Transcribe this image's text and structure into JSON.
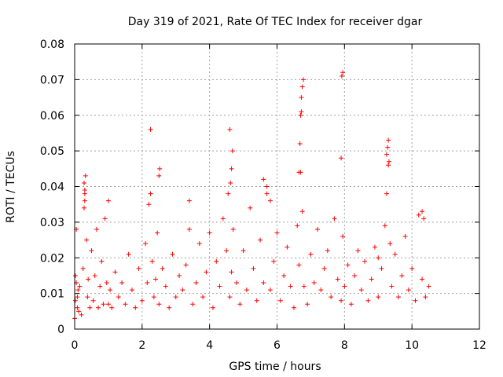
{
  "chart_data": {
    "type": "scatter",
    "title": "Day 319 of 2021, Rate Of TEC Index for receiver dgar",
    "xlabel": "GPS time / hours",
    "ylabel": "ROTI / TECUs",
    "xlim": [
      0,
      12
    ],
    "ylim": [
      0,
      0.08
    ],
    "xticks": [
      0,
      2,
      4,
      6,
      8,
      10,
      12
    ],
    "xtick_labels": [
      "0",
      "2",
      "4",
      "6",
      "8",
      "10",
      "12"
    ],
    "yticks": [
      0,
      0.01,
      0.02,
      0.03,
      0.04,
      0.05,
      0.06,
      0.07,
      0.08
    ],
    "ytick_labels": [
      "0",
      "0.01",
      "0.02",
      "0.03",
      "0.04",
      "0.05",
      "0.06",
      "0.07",
      "0.08"
    ],
    "grid": true,
    "marker": "+",
    "series": [
      {
        "name": "dgar",
        "color": "#ff0000",
        "x": [
          0.0,
          0.02,
          0.05,
          0.08,
          0.1,
          0.12,
          0.02,
          0.05,
          0.08,
          0.15,
          0.2,
          0.25,
          0.28,
          0.3,
          0.32,
          0.35,
          0.38,
          0.4,
          0.45,
          0.5,
          0.55,
          0.6,
          0.65,
          0.7,
          0.75,
          0.8,
          0.85,
          0.9,
          0.95,
          1.0,
          1.05,
          1.1,
          1.2,
          1.3,
          1.4,
          1.5,
          1.6,
          1.7,
          1.8,
          1.9,
          2.0,
          2.1,
          2.15,
          2.2,
          2.25,
          2.3,
          2.35,
          2.4,
          2.45,
          2.5,
          2.6,
          2.7,
          2.8,
          2.9,
          3.0,
          3.1,
          3.2,
          3.3,
          3.4,
          3.5,
          3.6,
          3.7,
          3.8,
          3.9,
          4.0,
          4.1,
          4.2,
          4.3,
          4.4,
          4.5,
          4.55,
          4.6,
          4.65,
          4.7,
          4.8,
          4.9,
          5.0,
          5.1,
          5.2,
          5.3,
          5.4,
          5.5,
          5.6,
          5.7,
          5.8,
          5.9,
          6.0,
          6.1,
          6.2,
          6.3,
          6.4,
          6.5,
          6.6,
          6.65,
          6.7,
          6.75,
          6.8,
          6.9,
          7.0,
          7.1,
          7.2,
          7.3,
          7.4,
          7.5,
          7.6,
          7.7,
          7.8,
          7.9,
          7.95,
          8.0,
          8.1,
          8.2,
          8.3,
          8.4,
          8.5,
          8.6,
          8.7,
          8.8,
          8.9,
          9.0,
          9.1,
          9.2,
          9.25,
          9.3,
          9.35,
          9.4,
          9.5,
          9.6,
          9.7,
          9.8,
          9.9,
          10.0,
          10.1,
          10.2,
          10.3,
          10.4,
          10.5,
          0.28,
          0.3,
          0.3,
          2.25,
          2.5,
          2.52,
          4.6,
          4.62,
          4.65,
          4.68,
          5.7,
          5.8,
          6.65,
          6.68,
          6.7,
          6.72,
          6.75,
          6.78,
          6.72,
          7.9,
          7.92,
          7.95,
          9.25,
          9.28,
          9.3,
          9.32,
          1.0,
          3.4,
          5.6,
          9.0,
          10.3,
          10.35
        ],
        "y": [
          0.003,
          0.008,
          0.013,
          0.006,
          0.011,
          0.005,
          0.015,
          0.028,
          0.009,
          0.012,
          0.004,
          0.017,
          0.034,
          0.039,
          0.043,
          0.025,
          0.009,
          0.014,
          0.006,
          0.022,
          0.008,
          0.015,
          0.028,
          0.006,
          0.012,
          0.019,
          0.007,
          0.031,
          0.013,
          0.007,
          0.011,
          0.006,
          0.016,
          0.009,
          0.013,
          0.007,
          0.021,
          0.011,
          0.006,
          0.017,
          0.008,
          0.024,
          0.013,
          0.035,
          0.038,
          0.019,
          0.009,
          0.014,
          0.027,
          0.007,
          0.017,
          0.012,
          0.006,
          0.021,
          0.009,
          0.015,
          0.011,
          0.018,
          0.028,
          0.007,
          0.013,
          0.024,
          0.009,
          0.016,
          0.027,
          0.006,
          0.019,
          0.012,
          0.031,
          0.022,
          0.038,
          0.009,
          0.016,
          0.028,
          0.013,
          0.007,
          0.022,
          0.011,
          0.034,
          0.017,
          0.008,
          0.025,
          0.013,
          0.038,
          0.011,
          0.019,
          0.027,
          0.008,
          0.015,
          0.023,
          0.012,
          0.006,
          0.029,
          0.018,
          0.044,
          0.033,
          0.012,
          0.007,
          0.021,
          0.013,
          0.028,
          0.011,
          0.017,
          0.022,
          0.009,
          0.031,
          0.014,
          0.008,
          0.026,
          0.012,
          0.018,
          0.007,
          0.015,
          0.022,
          0.011,
          0.019,
          0.008,
          0.014,
          0.023,
          0.009,
          0.017,
          0.029,
          0.038,
          0.046,
          0.024,
          0.012,
          0.021,
          0.009,
          0.015,
          0.026,
          0.011,
          0.017,
          0.008,
          0.032,
          0.014,
          0.009,
          0.012,
          0.041,
          0.038,
          0.036,
          0.056,
          0.043,
          0.045,
          0.056,
          0.041,
          0.045,
          0.05,
          0.04,
          0.036,
          0.044,
          0.052,
          0.06,
          0.065,
          0.068,
          0.07,
          0.061,
          0.048,
          0.071,
          0.072,
          0.049,
          0.051,
          0.053,
          0.047,
          0.036,
          0.036,
          0.042,
          0.02,
          0.033,
          0.031
        ]
      }
    ]
  }
}
